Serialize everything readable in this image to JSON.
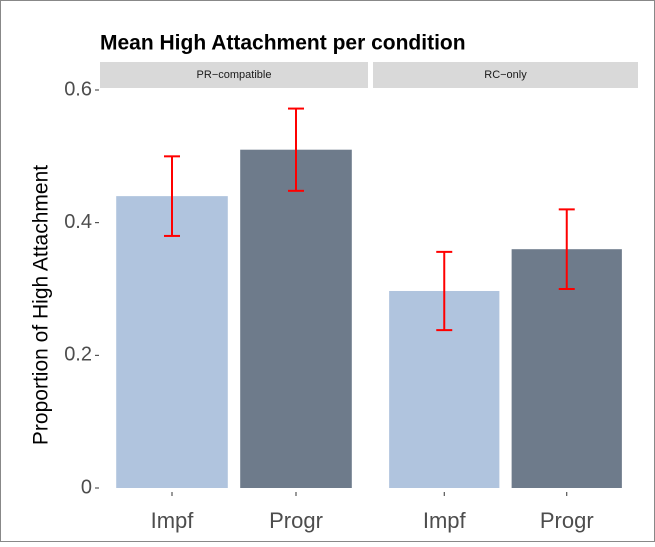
{
  "chart_data": {
    "type": "bar",
    "title": "Mean High Attachment per condition",
    "ylabel": "Proportion of High Attachment",
    "ylim": [
      0,
      0.6
    ],
    "yticks": [
      0.0,
      0.2,
      0.4,
      0.6
    ],
    "error_color": "#ff0000",
    "panels": [
      {
        "strip": "PR−compatible",
        "categories": [
          "Impf",
          "Progr"
        ],
        "values": [
          0.44,
          0.51
        ],
        "errors": [
          0.06,
          0.062
        ],
        "colors": [
          "#b0c4de",
          "#6e7b8b"
        ]
      },
      {
        "strip": "RC−only",
        "categories": [
          "Impf",
          "Progr"
        ],
        "values": [
          0.297,
          0.36
        ],
        "errors": [
          0.059,
          0.06
        ],
        "colors": [
          "#b0c4de",
          "#6e7b8b"
        ]
      }
    ]
  }
}
